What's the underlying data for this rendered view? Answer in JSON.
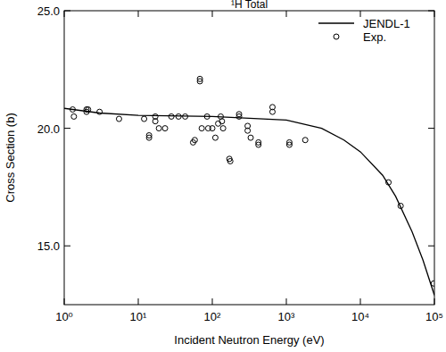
{
  "chart_data": {
    "type": "line",
    "title": "¹H Total",
    "x_label": "Incident Neutron Energy (eV)",
    "y_label": "Cross Section (b)",
    "log": "x",
    "legend": "upper right",
    "grid": false,
    "xlim": [
      1,
      100000
    ],
    "xticks": [
      {
        "value": 1,
        "label": "10⁰"
      },
      {
        "value": 10,
        "label": "10¹"
      },
      {
        "value": 100,
        "label": "10²"
      },
      {
        "value": 1000,
        "label": "10³"
      },
      {
        "value": 10000,
        "label": "10⁴"
      },
      {
        "value": 100000,
        "label": "10⁵"
      }
    ],
    "ylim": [
      12.5,
      25
    ],
    "yticks": [
      {
        "value": 15,
        "label": "15.0"
      },
      {
        "value": 20,
        "label": "20.0"
      },
      {
        "value": 25,
        "label": "25.0"
      }
    ],
    "series": [
      {
        "name": "JENDL-1",
        "type": "line",
        "color": "#000000",
        "line_style": "solid",
        "marker": "none",
        "x": [
          1,
          3,
          10,
          100,
          1000,
          3000,
          6000,
          10000,
          20000,
          30000,
          50000,
          70000,
          100000
        ],
        "values": [
          20.85,
          20.65,
          20.55,
          20.5,
          20.35,
          20.0,
          19.5,
          19.0,
          18.0,
          17.1,
          15.6,
          14.4,
          12.9
        ]
      },
      {
        "name": "Exp.",
        "type": "scatter",
        "color": "#000000",
        "marker": "circle",
        "x": [
          1.3,
          1.35,
          2,
          2,
          2.1,
          3,
          5.5,
          12,
          14,
          14,
          17,
          17,
          19,
          23,
          28,
          35,
          43,
          55,
          58,
          68,
          68,
          72,
          85,
          88,
          100,
          110,
          120,
          130,
          135,
          140,
          170,
          175,
          230,
          230,
          300,
          300,
          330,
          420,
          420,
          650,
          650,
          1100,
          1100,
          1800,
          24000,
          35000,
          98000
        ],
        "values": [
          20.8,
          20.5,
          20.8,
          20.7,
          20.8,
          20.7,
          20.4,
          20.4,
          19.6,
          19.7,
          20.5,
          20.3,
          20.0,
          20.0,
          20.5,
          20.5,
          20.5,
          19.4,
          19.5,
          22.1,
          22.0,
          20.0,
          20.5,
          20.0,
          20.0,
          19.6,
          20.2,
          20.5,
          20.3,
          20.0,
          18.7,
          18.6,
          20.6,
          20.5,
          20.1,
          19.9,
          19.6,
          19.4,
          19.3,
          20.9,
          20.7,
          19.4,
          19.3,
          19.5,
          17.7,
          16.7,
          13.4
        ]
      }
    ]
  }
}
